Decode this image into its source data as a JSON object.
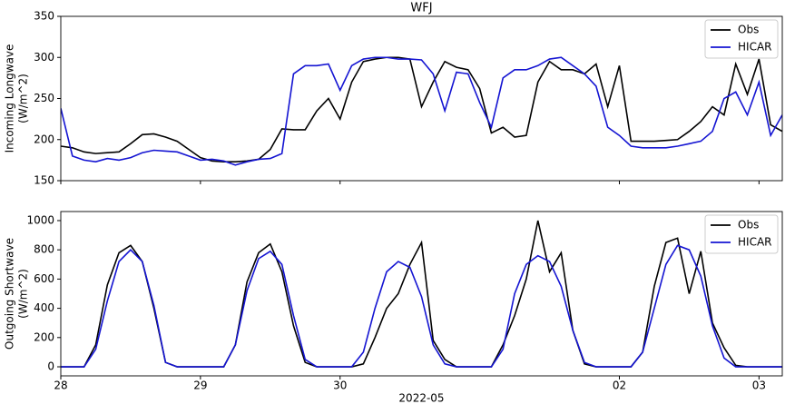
{
  "chart_data": [
    {
      "type": "line",
      "title": "WFJ",
      "ylabel": [
        "Incoming Longwave",
        "(W/m^2)"
      ],
      "x": [
        0,
        2,
        4,
        6,
        8,
        10,
        12,
        14,
        16,
        18,
        20,
        22,
        24,
        26,
        28,
        30,
        32,
        34,
        36,
        38,
        40,
        42,
        44,
        46,
        48,
        50,
        52,
        54,
        56,
        58,
        60,
        62,
        64,
        66,
        68,
        70,
        72,
        74,
        76,
        78,
        80,
        82,
        84,
        86,
        88,
        90,
        92,
        94,
        96,
        98,
        100,
        102,
        104,
        106,
        108,
        110,
        112,
        114,
        116,
        118,
        120,
        122,
        124
      ],
      "xlim": [
        0,
        124
      ],
      "ylim": [
        150,
        350
      ],
      "yticks": [
        150,
        200,
        250,
        300,
        350
      ],
      "legend": "upper right",
      "series": [
        {
          "name": "Obs",
          "color": "#000000",
          "values": [
            192,
            190,
            185,
            183,
            184,
            185,
            195,
            206,
            207,
            203,
            198,
            188,
            178,
            174,
            173,
            173,
            174,
            176,
            188,
            213,
            212,
            212,
            235,
            250,
            225,
            270,
            295,
            298,
            300,
            300,
            298,
            240,
            270,
            295,
            288,
            285,
            262,
            208,
            215,
            203,
            205,
            270,
            295,
            285,
            285,
            280,
            292,
            240,
            290,
            198,
            198,
            198,
            199,
            200,
            210,
            222,
            240,
            230,
            292,
            255,
            298,
            218,
            210
          ]
        },
        {
          "name": "HICAR",
          "color": "#1414d2",
          "values": [
            238,
            180,
            175,
            173,
            177,
            175,
            178,
            184,
            187,
            186,
            185,
            180,
            175,
            176,
            174,
            169,
            173,
            176,
            177,
            183,
            280,
            290,
            290,
            292,
            260,
            290,
            298,
            300,
            300,
            298,
            298,
            297,
            280,
            235,
            282,
            280,
            245,
            215,
            275,
            285,
            285,
            290,
            298,
            300,
            290,
            280,
            265,
            215,
            205,
            192,
            190,
            190,
            190,
            192,
            195,
            198,
            210,
            250,
            258,
            230,
            270,
            205,
            230
          ]
        }
      ]
    },
    {
      "type": "line",
      "ylabel": [
        "Outgoing Shortwave",
        "(W/m^2)"
      ],
      "xlabel": "2022-05",
      "x": [
        0,
        2,
        4,
        6,
        8,
        10,
        12,
        14,
        16,
        18,
        20,
        22,
        24,
        26,
        28,
        30,
        32,
        34,
        36,
        38,
        40,
        42,
        44,
        46,
        48,
        50,
        52,
        54,
        56,
        58,
        60,
        62,
        64,
        66,
        68,
        70,
        72,
        74,
        76,
        78,
        80,
        82,
        84,
        86,
        88,
        90,
        92,
        94,
        96,
        98,
        100,
        102,
        104,
        106,
        108,
        110,
        112,
        114,
        116,
        118,
        120,
        122,
        124
      ],
      "xlim": [
        0,
        124
      ],
      "xticks": [
        {
          "value": 0,
          "label": "28"
        },
        {
          "value": 24,
          "label": "29"
        },
        {
          "value": 48,
          "label": "30"
        },
        {
          "value": 96,
          "label": "02"
        },
        {
          "value": 120,
          "label": "03"
        }
      ],
      "ylim": [
        -62,
        1062
      ],
      "yticks": [
        0,
        200,
        400,
        600,
        800,
        1000
      ],
      "legend": "upper right",
      "series": [
        {
          "name": "Obs",
          "color": "#000000",
          "values": [
            0,
            0,
            0,
            150,
            560,
            780,
            830,
            720,
            400,
            30,
            0,
            0,
            0,
            0,
            0,
            150,
            580,
            780,
            840,
            650,
            280,
            30,
            0,
            0,
            0,
            0,
            20,
            200,
            400,
            500,
            700,
            850,
            180,
            50,
            0,
            0,
            0,
            0,
            150,
            350,
            600,
            1000,
            650,
            780,
            250,
            20,
            0,
            0,
            0,
            0,
            100,
            550,
            850,
            880,
            500,
            790,
            300,
            130,
            10,
            0,
            0,
            0,
            0
          ]
        },
        {
          "name": "HICAR",
          "color": "#1414d2",
          "values": [
            0,
            0,
            0,
            120,
            450,
            720,
            800,
            720,
            420,
            30,
            0,
            0,
            0,
            0,
            0,
            150,
            520,
            740,
            790,
            700,
            350,
            50,
            0,
            0,
            0,
            0,
            100,
            400,
            650,
            720,
            680,
            480,
            150,
            20,
            0,
            0,
            0,
            0,
            120,
            500,
            700,
            760,
            720,
            550,
            250,
            30,
            0,
            0,
            0,
            0,
            100,
            400,
            700,
            830,
            800,
            620,
            280,
            60,
            0,
            0,
            0,
            0,
            0
          ]
        }
      ]
    }
  ]
}
